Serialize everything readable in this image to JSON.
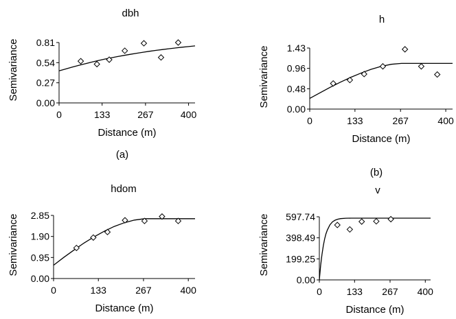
{
  "chart_data": [
    {
      "type": "scatter",
      "title": "dbh",
      "xlabel": "Distance (m)",
      "ylabel": "Semivariance",
      "caption": "(a)",
      "xlim": [
        0,
        420
      ],
      "ylim": [
        0,
        0.81
      ],
      "x_ticks": [
        "0",
        "133",
        "267",
        "400"
      ],
      "y_ticks": [
        "0.00",
        "0.27",
        "0.54",
        "0.81"
      ],
      "series": [
        {
          "marker": "diamond",
          "x": [
            67,
            117,
            155,
            203,
            262,
            315,
            368
          ],
          "y": [
            0.56,
            0.52,
            0.58,
            0.7,
            0.8,
            0.61,
            0.81
          ]
        }
      ],
      "fit_line": {
        "x": [
          0,
          20,
          40,
          60,
          80,
          100,
          120,
          140,
          160,
          180,
          200,
          220,
          240,
          260,
          280,
          300,
          320,
          340,
          360,
          380,
          400,
          420
        ],
        "y": [
          0.43,
          0.455,
          0.48,
          0.503,
          0.525,
          0.547,
          0.567,
          0.586,
          0.604,
          0.621,
          0.637,
          0.652,
          0.666,
          0.68,
          0.693,
          0.705,
          0.716,
          0.727,
          0.737,
          0.747,
          0.756,
          0.765
        ]
      }
    },
    {
      "type": "scatter",
      "title": "h",
      "xlabel": "Distance (m)",
      "ylabel": "Semivariance",
      "caption": "(b)",
      "xlim": [
        0,
        420
      ],
      "ylim": [
        0,
        1.43
      ],
      "x_ticks": [
        "0",
        "133",
        "267",
        "400"
      ],
      "y_ticks": [
        "0.00",
        "0.48",
        "0.96",
        "1.43"
      ],
      "series": [
        {
          "marker": "diamond",
          "x": [
            69,
            118,
            160,
            215,
            280,
            328,
            375
          ],
          "y": [
            0.6,
            0.68,
            0.82,
            1.0,
            1.4,
            1.0,
            0.81
          ]
        }
      ],
      "fit_line": {
        "x": [
          0,
          30,
          60,
          90,
          120,
          150,
          180,
          210,
          240,
          270,
          300,
          330,
          360,
          390,
          420
        ],
        "y": [
          0.25,
          0.38,
          0.51,
          0.63,
          0.74,
          0.84,
          0.93,
          1.0,
          1.05,
          1.07,
          1.07,
          1.07,
          1.07,
          1.07,
          1.07
        ]
      }
    },
    {
      "type": "scatter",
      "title": "hdom",
      "xlabel": "Distance (m)",
      "ylabel": "Semivariance",
      "caption": "",
      "xlim": [
        0,
        420
      ],
      "ylim": [
        0,
        2.85
      ],
      "x_ticks": [
        "0",
        "133",
        "267",
        "400"
      ],
      "y_ticks": [
        "0.00",
        "0.95",
        "1.90",
        "2.85"
      ],
      "series": [
        {
          "marker": "diamond",
          "x": [
            68,
            118,
            160,
            212,
            270,
            322,
            370
          ],
          "y": [
            1.38,
            1.85,
            2.1,
            2.63,
            2.6,
            2.8,
            2.6
          ]
        }
      ],
      "fit_line": {
        "x": [
          0,
          30,
          60,
          90,
          120,
          150,
          180,
          210,
          240,
          270,
          300,
          330,
          360,
          390,
          420
        ],
        "y": [
          0.6,
          0.95,
          1.28,
          1.6,
          1.88,
          2.13,
          2.35,
          2.52,
          2.64,
          2.7,
          2.7,
          2.7,
          2.7,
          2.7,
          2.7
        ]
      }
    },
    {
      "type": "scatter",
      "title": "v",
      "xlabel": "Distance (m)",
      "ylabel": "Semivariance",
      "caption": "",
      "xlim": [
        0,
        420
      ],
      "ylim": [
        0,
        597.74
      ],
      "x_ticks": [
        "0",
        "133",
        "267",
        "400"
      ],
      "y_ticks": [
        "0.00",
        "199.25",
        "398.49",
        "597.74"
      ],
      "series": [
        {
          "marker": "diamond",
          "x": [
            68,
            115,
            160,
            215,
            270
          ],
          "y": [
            520,
            478,
            552,
            555,
            575
          ]
        }
      ],
      "fit_line": {
        "x": [
          0,
          5,
          10,
          15,
          20,
          25,
          30,
          40,
          50,
          60,
          70,
          80,
          100,
          120,
          150,
          200,
          250,
          300,
          350,
          400,
          420
        ],
        "y": [
          0,
          137,
          243,
          324,
          387,
          435,
          472,
          522,
          551,
          566,
          575,
          580,
          584,
          585,
          585,
          585,
          585,
          585,
          585,
          585,
          585
        ]
      }
    }
  ]
}
